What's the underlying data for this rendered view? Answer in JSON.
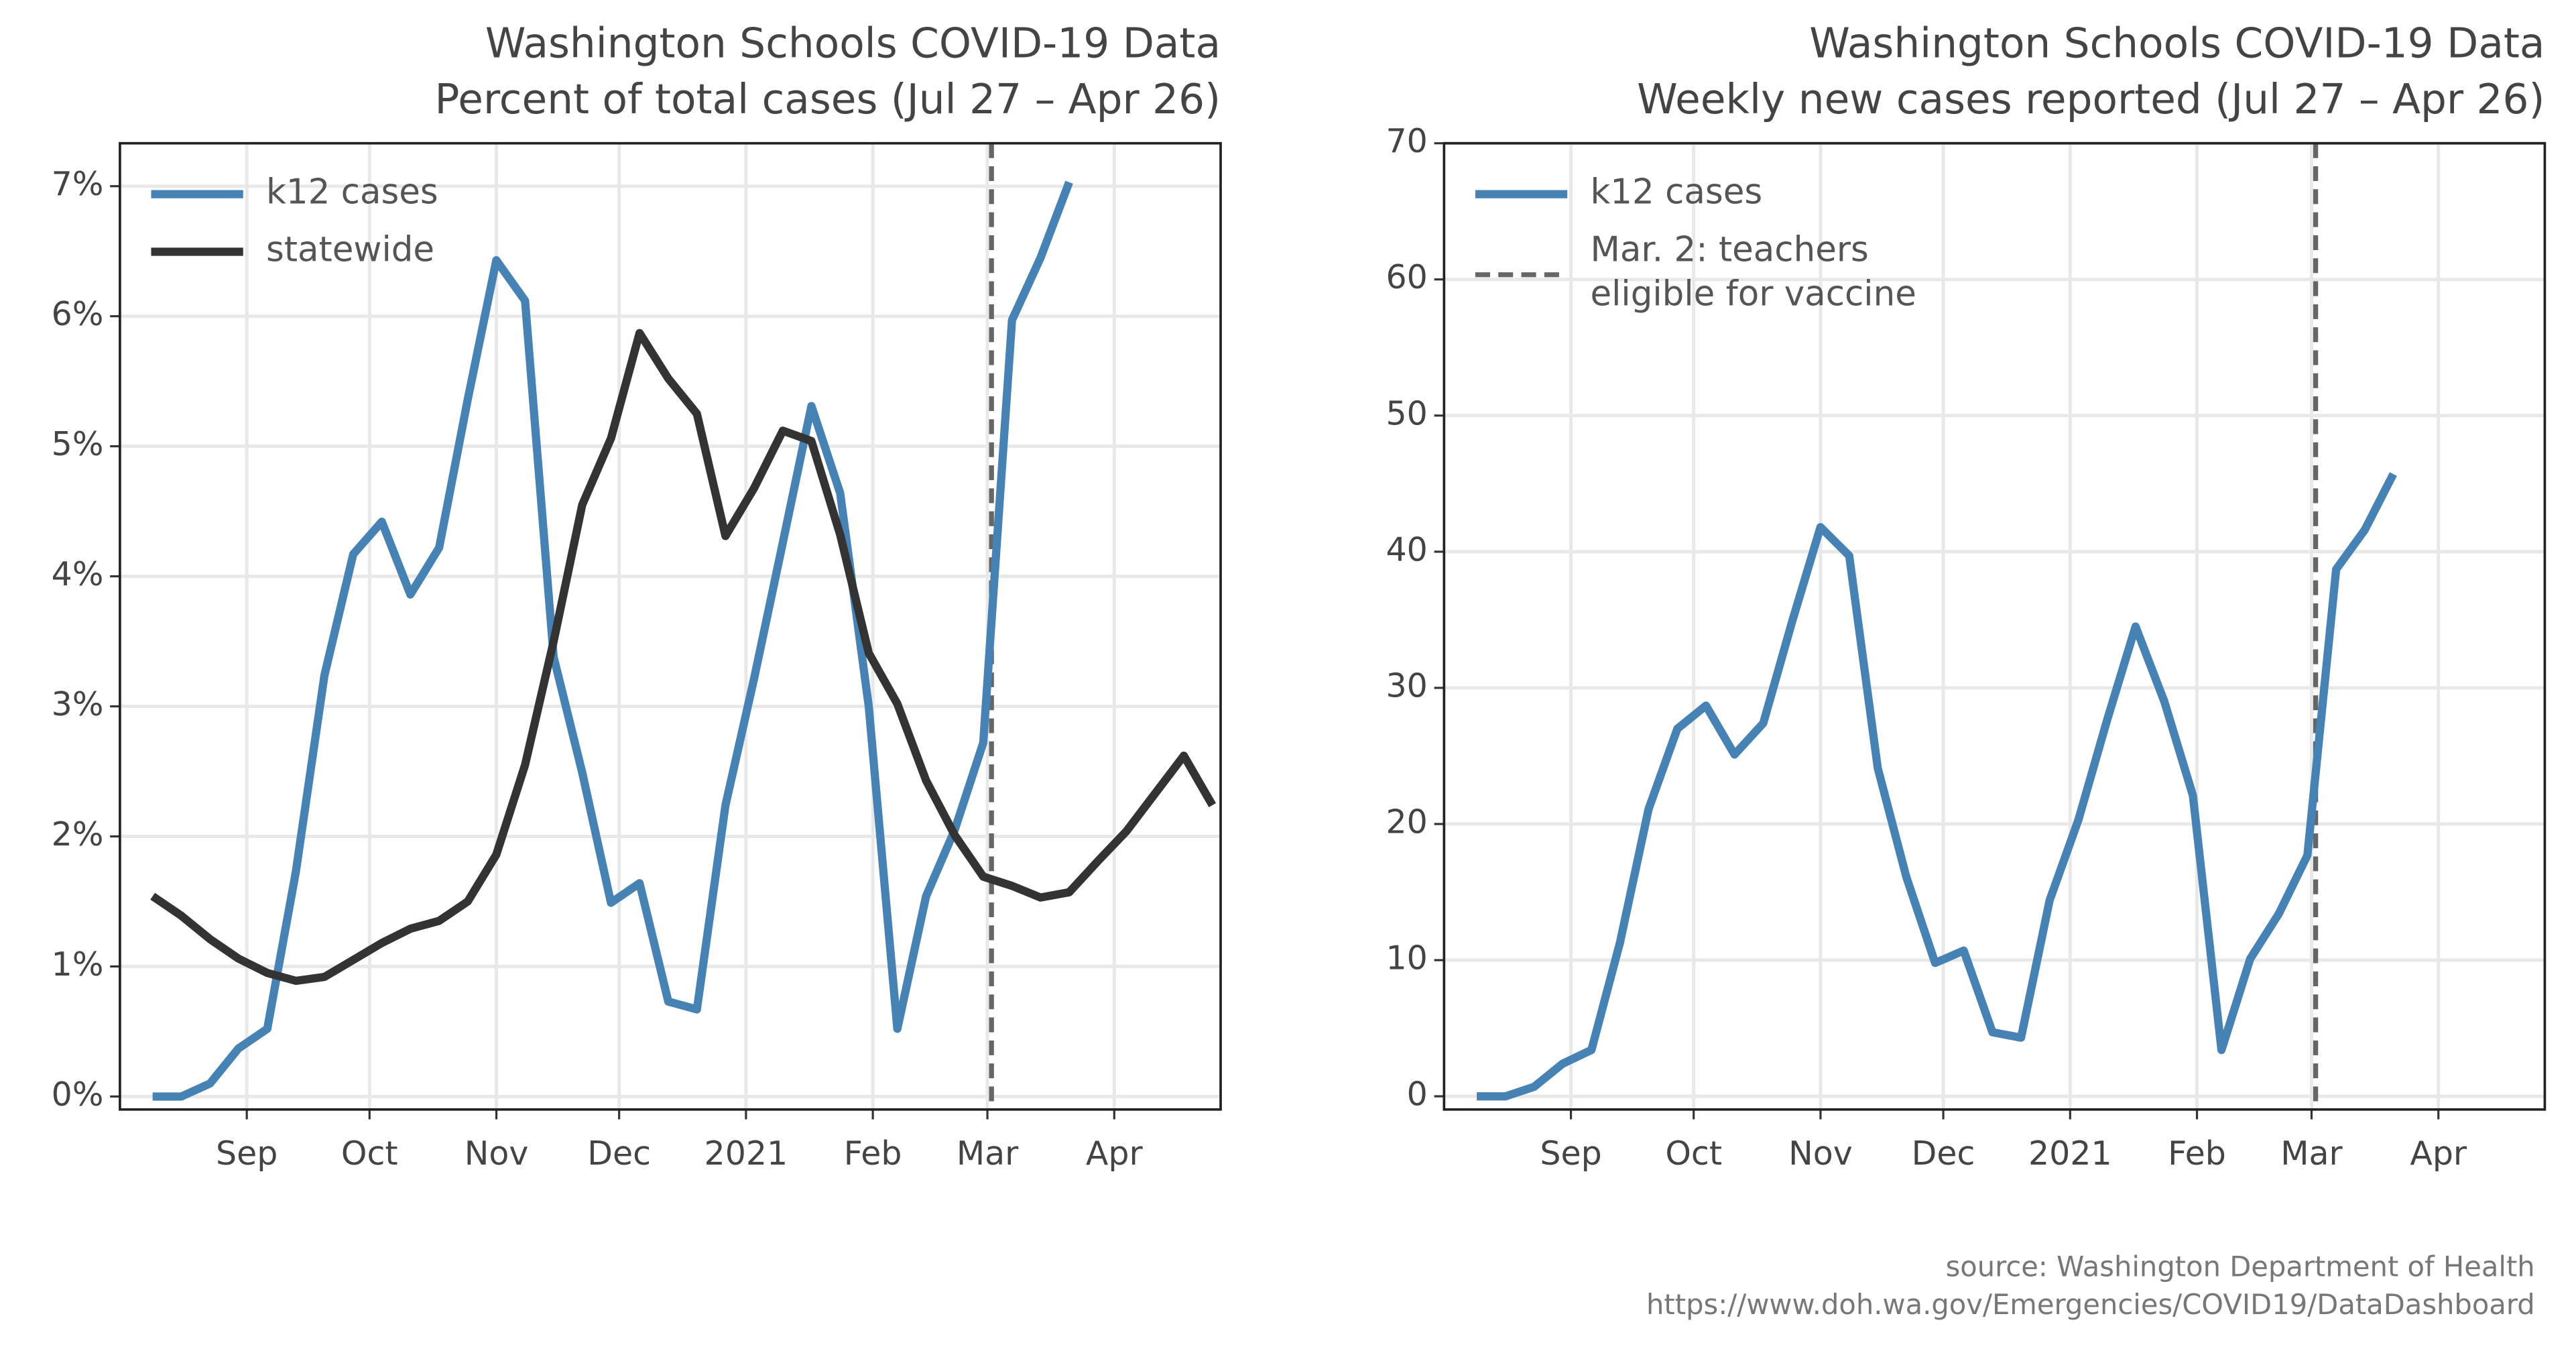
{
  "chart_data": [
    {
      "type": "line",
      "title": "Washington Schools COVID-19 Data",
      "subtitle": "Percent of total cases (Jul 27 – Apr 26)",
      "x": [
        "2020-08-09",
        "2020-08-16",
        "2020-08-23",
        "2020-08-30",
        "2020-09-06",
        "2020-09-13",
        "2020-09-20",
        "2020-09-27",
        "2020-10-04",
        "2020-10-11",
        "2020-10-18",
        "2020-10-25",
        "2020-11-01",
        "2020-11-08",
        "2020-11-15",
        "2020-11-22",
        "2020-11-29",
        "2020-12-06",
        "2020-12-13",
        "2020-12-20",
        "2020-12-27",
        "2021-01-03",
        "2021-01-10",
        "2021-01-17",
        "2021-01-24",
        "2021-01-31",
        "2021-02-07",
        "2021-02-14",
        "2021-02-21",
        "2021-02-28",
        "2021-03-07",
        "2021-03-14",
        "2021-03-21",
        "2021-03-28",
        "2021-04-04",
        "2021-04-11",
        "2021-04-18",
        "2021-04-25"
      ],
      "series": [
        {
          "name": "k12 cases",
          "color": "#4682b4",
          "values": [
            0,
            0,
            0.1,
            0.37,
            0.52,
            1.73,
            3.24,
            4.17,
            4.42,
            3.86,
            4.22,
            5.36,
            6.43,
            6.12,
            3.38,
            2.49,
            1.49,
            1.64,
            0.73,
            0.67,
            2.24,
            3.22,
            4.26,
            5.31,
            4.64,
            3.0,
            0.52,
            1.54,
            2.05,
            2.72,
            5.97,
            6.45,
            7.03,
            null,
            null,
            null,
            null,
            null
          ]
        },
        {
          "name": "statewide",
          "color": "#333333",
          "values": [
            1.54,
            1.39,
            1.21,
            1.06,
            0.95,
            0.89,
            0.92,
            1.05,
            1.18,
            1.29,
            1.35,
            1.5,
            1.86,
            2.55,
            3.5,
            4.55,
            5.06,
            5.87,
            5.52,
            5.25,
            4.31,
            4.68,
            5.12,
            5.04,
            4.32,
            3.41,
            3.02,
            2.43,
            2.01,
            1.69,
            1.62,
            1.53,
            1.57,
            1.81,
            2.04,
            2.33,
            2.62,
            2.24
          ]
        }
      ],
      "vline": "2021-03-02",
      "xlim": [
        "2020-08-01",
        "2021-04-27"
      ],
      "xticks": [
        {
          "value": "2020-09-01",
          "label": "Sep"
        },
        {
          "value": "2020-10-01",
          "label": "Oct"
        },
        {
          "value": "2020-11-01",
          "label": "Nov"
        },
        {
          "value": "2020-12-01",
          "label": "Dec"
        },
        {
          "value": "2021-01-01",
          "label": "2021"
        },
        {
          "value": "2021-02-01",
          "label": "Feb"
        },
        {
          "value": "2021-03-01",
          "label": "Mar"
        },
        {
          "value": "2021-04-01",
          "label": "Apr"
        }
      ],
      "ylim": [
        -0.1,
        7.33
      ],
      "yticks": [
        {
          "value": 0,
          "label": "0%"
        },
        {
          "value": 1,
          "label": "1%"
        },
        {
          "value": 2,
          "label": "2%"
        },
        {
          "value": 3,
          "label": "3%"
        },
        {
          "value": 4,
          "label": "4%"
        },
        {
          "value": 5,
          "label": "5%"
        },
        {
          "value": 6,
          "label": "6%"
        },
        {
          "value": 7,
          "label": "7%"
        }
      ],
      "grid": true,
      "legend": "upper left"
    },
    {
      "type": "line",
      "title": "Washington Schools COVID-19 Data",
      "subtitle": "Weekly new cases reported (Jul 27 – Apr 26)",
      "x": [
        "2020-08-09",
        "2020-08-16",
        "2020-08-23",
        "2020-08-30",
        "2020-09-06",
        "2020-09-13",
        "2020-09-20",
        "2020-09-27",
        "2020-10-04",
        "2020-10-11",
        "2020-10-18",
        "2020-10-25",
        "2020-11-01",
        "2020-11-08",
        "2020-11-15",
        "2020-11-22",
        "2020-11-29",
        "2020-12-06",
        "2020-12-13",
        "2020-12-20",
        "2020-12-27",
        "2021-01-03",
        "2021-01-10",
        "2021-01-17",
        "2021-01-24",
        "2021-01-31",
        "2021-02-07",
        "2021-02-14",
        "2021-02-21",
        "2021-02-28",
        "2021-03-07",
        "2021-03-14",
        "2021-03-21"
      ],
      "series": [
        {
          "name": "k12 cases",
          "color": "#4682b4",
          "values": [
            0,
            0,
            0.7,
            2.4,
            3.4,
            11.3,
            21.1,
            27.0,
            28.7,
            25.1,
            27.4,
            34.8,
            41.8,
            39.7,
            24.1,
            16.1,
            9.8,
            10.7,
            4.7,
            4.3,
            14.4,
            20.3,
            27.6,
            34.5,
            29.0,
            22.1,
            3.4,
            10.1,
            13.4,
            17.7,
            38.7,
            41.6,
            45.7
          ]
        }
      ],
      "vline": "2021-03-02",
      "vline_label": [
        "Mar. 2: teachers",
        "eligible for vaccine"
      ],
      "xlim": [
        "2020-08-01",
        "2021-04-27"
      ],
      "xticks": [
        {
          "value": "2020-09-01",
          "label": "Sep"
        },
        {
          "value": "2020-10-01",
          "label": "Oct"
        },
        {
          "value": "2020-11-01",
          "label": "Nov"
        },
        {
          "value": "2020-12-01",
          "label": "Dec"
        },
        {
          "value": "2021-01-01",
          "label": "2021"
        },
        {
          "value": "2021-02-01",
          "label": "Feb"
        },
        {
          "value": "2021-03-01",
          "label": "Mar"
        },
        {
          "value": "2021-04-01",
          "label": "Apr"
        }
      ],
      "ylim": [
        -0.97,
        70
      ],
      "yticks": [
        0,
        10,
        20,
        30,
        40,
        50,
        60,
        70
      ],
      "grid": true,
      "legend": "upper left"
    }
  ],
  "source": [
    "source: Washington Department of Health",
    "https://www.doh.wa.gov/Emergencies/COVID19/DataDashboard"
  ]
}
